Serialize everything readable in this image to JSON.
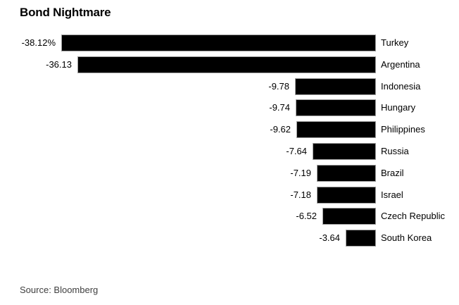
{
  "title": "Bond Nightmare",
  "source": "Source: Bloomberg",
  "colors": {
    "background": "#ffffff",
    "bar": "#000000",
    "bar_border": "#9e9e9e",
    "text": "#000000",
    "source_text": "#404040"
  },
  "chart_data": {
    "type": "bar",
    "orientation": "horizontal",
    "title": "Bond Nightmare",
    "xlabel": "",
    "ylabel": "",
    "unit": "%",
    "grid": false,
    "legend": false,
    "sort": "ascending by value",
    "categories": [
      "Turkey",
      "Argentina",
      "Indonesia",
      "Hungary",
      "Philippines",
      "Russia",
      "Brazil",
      "Israel",
      "Czech Republic",
      "South Korea"
    ],
    "values": [
      -38.12,
      -36.13,
      -9.78,
      -9.74,
      -9.62,
      -7.64,
      -7.19,
      -7.18,
      -6.52,
      -3.64
    ],
    "value_labels": [
      "-38.12%",
      "-36.13",
      "-9.78",
      "-9.74",
      "-9.62",
      "-7.64",
      "-7.19",
      "-7.18",
      "-6.52",
      "-3.64"
    ],
    "xlim": [
      -38.12,
      0
    ],
    "source": "Source: Bloomberg"
  }
}
